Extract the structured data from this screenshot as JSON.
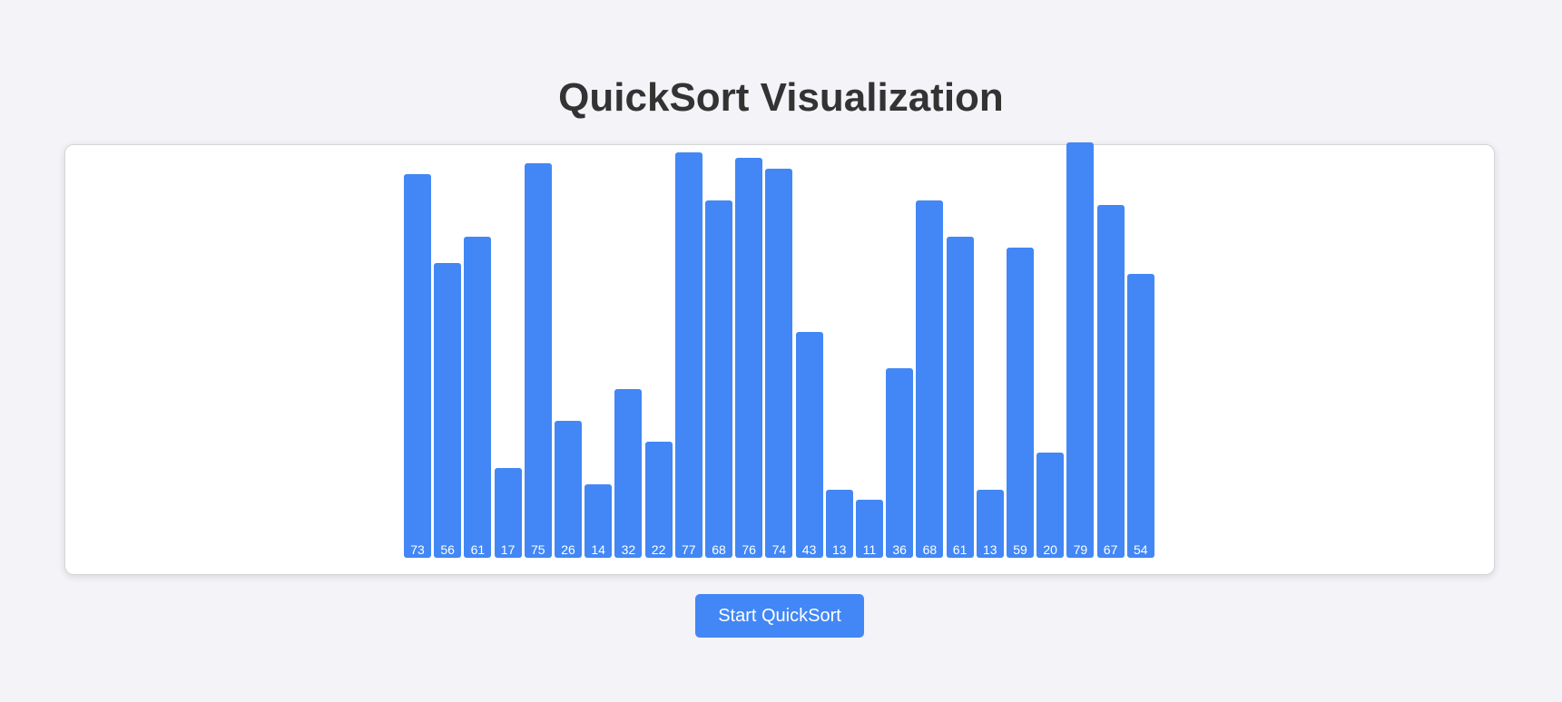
{
  "page": {
    "title": "QuickSort Visualization"
  },
  "controls": {
    "start_label": "Start QuickSort"
  },
  "colors": {
    "bar": "#4287f5",
    "background": "#f3f3f8",
    "panel": "#ffffff",
    "title": "#333333"
  },
  "chart_data": {
    "type": "bar",
    "values": [
      73,
      56,
      61,
      17,
      75,
      26,
      14,
      32,
      22,
      77,
      68,
      76,
      74,
      43,
      13,
      11,
      36,
      68,
      61,
      13,
      59,
      20,
      79,
      67,
      54
    ]
  }
}
